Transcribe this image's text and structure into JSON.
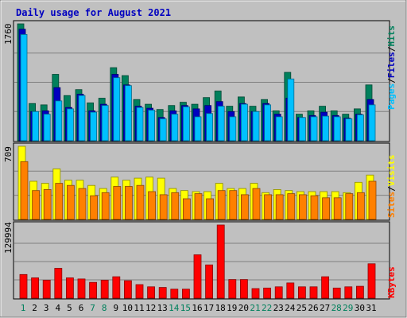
{
  "title": "Daily usage for August 2021",
  "colors": {
    "frame_bg": "#c0c0c0",
    "plot_bg": "#c0c0c0",
    "hits": "#00805c",
    "files": "#0000c0",
    "pages": "#00c0ff",
    "visits": "#ffff00",
    "sites": "#ff8000",
    "kbytes": "#ff0000",
    "weekday_label": "#000000",
    "weekend_label": "#00805c",
    "title_color": "#0000c0"
  },
  "chart_data": [
    {
      "type": "bar",
      "panel": "hits-files-pages",
      "title": "Daily usage for August 2021",
      "ylabel": "1760",
      "ylim": [
        0,
        1760
      ],
      "legend": [
        "Pages",
        "/",
        "Files",
        "/",
        "Hits"
      ],
      "legend_placement": "right, vertical",
      "grid": true,
      "categories": [
        "1",
        "2",
        "3",
        "4",
        "5",
        "6",
        "7",
        "8",
        "9",
        "10",
        "11",
        "12",
        "13",
        "14",
        "15",
        "16",
        "17",
        "18",
        "19",
        "20",
        "21",
        "22",
        "23",
        "24",
        "25",
        "26",
        "27",
        "28",
        "29",
        "30",
        "31"
      ],
      "series": [
        {
          "name": "Hits",
          "values": [
            1760,
            560,
            540,
            1000,
            680,
            770,
            570,
            640,
            1100,
            980,
            620,
            550,
            470,
            530,
            580,
            550,
            650,
            750,
            520,
            660,
            520,
            620,
            450,
            1030,
            400,
            450,
            520,
            450,
            400,
            480,
            840
          ]
        },
        {
          "name": "Files",
          "values": [
            1680,
            440,
            450,
            800,
            500,
            700,
            450,
            550,
            1000,
            840,
            520,
            490,
            350,
            450,
            530,
            480,
            530,
            590,
            440,
            560,
            440,
            560,
            400,
            640,
            350,
            380,
            430,
            380,
            340,
            400,
            620
          ]
        },
        {
          "name": "Pages",
          "values": [
            1600,
            440,
            400,
            600,
            480,
            680,
            430,
            530,
            950,
            830,
            500,
            460,
            330,
            400,
            510,
            360,
            410,
            520,
            360,
            550,
            440,
            540,
            360,
            930,
            350,
            360,
            370,
            360,
            330,
            390,
            540
          ]
        }
      ]
    },
    {
      "type": "bar",
      "panel": "visits-sites",
      "ylabel": "709",
      "ylim": [
        0,
        709
      ],
      "legend": [
        "Sites",
        "/",
        "Visits"
      ],
      "legend_placement": "right, vertical",
      "grid": true,
      "categories": [
        "1",
        "2",
        "3",
        "4",
        "5",
        "6",
        "7",
        "8",
        "9",
        "10",
        "11",
        "12",
        "13",
        "14",
        "15",
        "16",
        "17",
        "18",
        "19",
        "20",
        "21",
        "22",
        "23",
        "24",
        "25",
        "26",
        "27",
        "28",
        "29",
        "30",
        "31"
      ],
      "series": [
        {
          "name": "Visits",
          "values": [
            709,
            370,
            350,
            490,
            380,
            380,
            330,
            300,
            410,
            380,
            400,
            410,
            400,
            300,
            280,
            270,
            270,
            350,
            300,
            300,
            350,
            260,
            290,
            280,
            270,
            270,
            270,
            270,
            260,
            360,
            430
          ]
        },
        {
          "name": "Sites",
          "values": [
            560,
            280,
            290,
            350,
            330,
            300,
            230,
            260,
            320,
            320,
            330,
            270,
            240,
            260,
            200,
            250,
            200,
            280,
            280,
            240,
            300,
            240,
            240,
            250,
            240,
            230,
            210,
            210,
            250,
            260,
            370
          ]
        }
      ]
    },
    {
      "type": "bar",
      "panel": "kbytes",
      "ylabel": "129994",
      "ylim": [
        0,
        129994
      ],
      "legend": [
        "KBytes"
      ],
      "legend_placement": "right, vertical",
      "grid": true,
      "categories": [
        "1",
        "2",
        "3",
        "4",
        "5",
        "6",
        "7",
        "8",
        "9",
        "10",
        "11",
        "12",
        "13",
        "14",
        "15",
        "16",
        "17",
        "18",
        "19",
        "20",
        "21",
        "22",
        "23",
        "24",
        "25",
        "26",
        "27",
        "28",
        "29",
        "30",
        "31"
      ],
      "series": [
        {
          "name": "KBytes",
          "values": [
            42000,
            36000,
            32000,
            53000,
            36000,
            34000,
            28000,
            32000,
            38000,
            31000,
            24000,
            20000,
            19000,
            16000,
            16000,
            77000,
            59000,
            129994,
            33000,
            33000,
            17000,
            18000,
            20000,
            27000,
            20000,
            20000,
            38000,
            18000,
            20000,
            21000,
            61000
          ]
        }
      ]
    }
  ],
  "x_axis": {
    "days": [
      "1",
      "2",
      "3",
      "4",
      "5",
      "6",
      "7",
      "8",
      "9",
      "10",
      "11",
      "12",
      "13",
      "14",
      "15",
      "16",
      "17",
      "18",
      "19",
      "20",
      "21",
      "22",
      "23",
      "24",
      "25",
      "26",
      "27",
      "28",
      "29",
      "30",
      "31"
    ],
    "weekend": [
      1,
      7,
      8,
      14,
      15,
      21,
      22,
      28,
      29
    ]
  }
}
